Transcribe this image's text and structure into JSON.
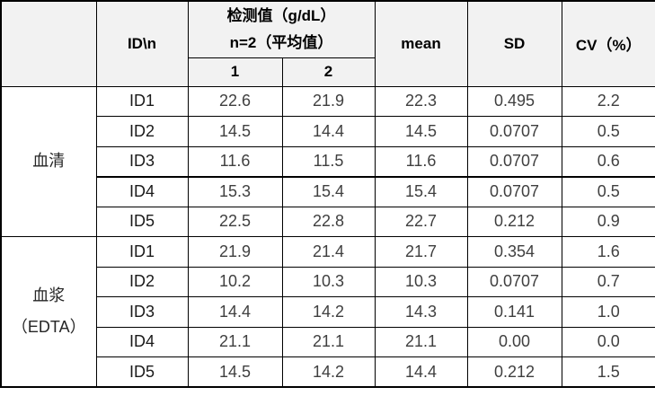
{
  "table": {
    "header": {
      "corner": "",
      "col_id": "ID\\n",
      "detection_line1": "检测值（g/dL）",
      "detection_line2": "n=2（平均值）",
      "sub_cols": [
        "1",
        "2"
      ],
      "col_mean": "mean",
      "col_sd": "SD",
      "col_cv": "CV（%）"
    },
    "groups": [
      {
        "label_lines": [
          "血清"
        ],
        "rows": [
          {
            "id": "ID1",
            "v1": "22.6",
            "v2": "21.9",
            "mean": "22.3",
            "sd": "0.495",
            "cv": "2.2"
          },
          {
            "id": "ID2",
            "v1": "14.5",
            "v2": "14.4",
            "mean": "14.5",
            "sd": "0.0707",
            "cv": "0.5"
          },
          {
            "id": "ID3",
            "v1": "11.6",
            "v2": "11.5",
            "mean": "11.6",
            "sd": "0.0707",
            "cv": "0.6"
          },
          {
            "id": "ID4",
            "v1": "15.3",
            "v2": "15.4",
            "mean": "15.4",
            "sd": "0.0707",
            "cv": "0.5",
            "divider_above": true
          },
          {
            "id": "ID5",
            "v1": "22.5",
            "v2": "22.8",
            "mean": "22.7",
            "sd": "0.212",
            "cv": "0.9"
          }
        ]
      },
      {
        "label_lines": [
          "血浆",
          "（EDTA）"
        ],
        "rows": [
          {
            "id": "ID1",
            "v1": "21.9",
            "v2": "21.4",
            "mean": "21.7",
            "sd": "0.354",
            "cv": "1.6"
          },
          {
            "id": "ID2",
            "v1": "10.2",
            "v2": "10.3",
            "mean": "10.3",
            "sd": "0.0707",
            "cv": "0.7"
          },
          {
            "id": "ID3",
            "v1": "14.4",
            "v2": "14.2",
            "mean": "14.3",
            "sd": "0.141",
            "cv": "1.0"
          },
          {
            "id": "ID4",
            "v1": "21.1",
            "v2": "21.1",
            "mean": "21.1",
            "sd": "0.00",
            "cv": "0.0"
          },
          {
            "id": "ID5",
            "v1": "14.5",
            "v2": "14.2",
            "mean": "14.4",
            "sd": "0.212",
            "cv": "1.5"
          }
        ]
      }
    ]
  },
  "colors": {
    "header_background": "#f2f2f2",
    "border": "#000000",
    "header_text": "#000000",
    "value_text": "#3f3f3f",
    "id_text": "#1a1a1a"
  }
}
